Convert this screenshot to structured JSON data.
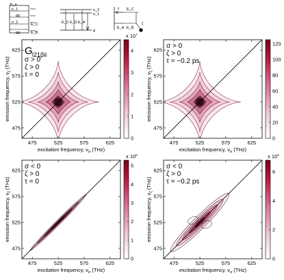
{
  "figure": {
    "diagram_labels": [
      "E_e",
      "E_b",
      "e_1",
      "e_2",
      "gg",
      "E_E",
      "E_D",
      "E_A",
      "E_B",
      "E_C",
      "g",
      "σ",
      "ζ",
      "τ",
      "e_1",
      "e_2"
    ],
    "panel_label": "G",
    "panel_label_sub": "l21βii"
  },
  "chart_data": [
    {
      "id": "top-left",
      "type": "heatmap",
      "pattern": "star",
      "params": [
        "σ > 0",
        "ζ > 0",
        "τ = 0"
      ],
      "xlabel": "excitation frequency, ν",
      "xlabel_sub": "σ",
      "xlabel_tail": " (THz)",
      "ylabel": "emission frequency, ν",
      "ylabel_sub": "ζ",
      "ylabel_tail": " (THz)",
      "xticks": [
        "475",
        "525",
        "575",
        "625"
      ],
      "yticks": [
        "475",
        "525",
        "575",
        "625"
      ],
      "xlim": [
        455,
        645
      ],
      "ylim": [
        455,
        645
      ],
      "peak": [
        525,
        525
      ],
      "colorbar": {
        "ticks": [
          "0",
          "1",
          "2",
          "3",
          "4"
        ],
        "multiplier": "x 10",
        "exponent": "7",
        "max": 4.5
      }
    },
    {
      "id": "top-right",
      "type": "heatmap",
      "pattern": "star",
      "params": [
        "σ > 0",
        "ζ > 0",
        "τ = −0.2 ps"
      ],
      "xlabel": "excitation frequency, ν",
      "xlabel_sub": "σ",
      "xlabel_tail": " (THz)",
      "ylabel": "emission frequency, ν",
      "ylabel_sub": "ζ",
      "ylabel_tail": " (THz)",
      "xticks": [
        "475",
        "525",
        "575",
        "625"
      ],
      "yticks": [
        "475",
        "525",
        "575",
        "625"
      ],
      "xlim": [
        455,
        645
      ],
      "ylim": [
        455,
        645
      ],
      "peak": [
        525,
        525
      ],
      "colorbar": {
        "ticks": [
          "0",
          "20",
          "40",
          "60",
          "80",
          "100",
          "120"
        ],
        "multiplier": "",
        "exponent": "",
        "max": 125
      }
    },
    {
      "id": "bottom-left",
      "type": "heatmap",
      "pattern": "diagonal",
      "params": [
        "σ < 0",
        "ζ > 0",
        "τ = 0"
      ],
      "xlabel": "excitation frequency, ν",
      "xlabel_sub": "σ",
      "xlabel_tail": " (THz)",
      "ylabel": "emission frequency, ν",
      "ylabel_sub": "ζ",
      "ylabel_tail": " (THz)",
      "xticks": [
        "475",
        "525",
        "575",
        "625"
      ],
      "yticks": [
        "475",
        "525",
        "575",
        "625"
      ],
      "xlim": [
        455,
        645
      ],
      "ylim": [
        455,
        645
      ],
      "peak": [
        525,
        525
      ],
      "colorbar": {
        "ticks": [
          "0",
          "1",
          "2",
          "3",
          "4",
          "5"
        ],
        "multiplier": "x 10",
        "exponent": "6",
        "max": 5.3
      }
    },
    {
      "id": "bottom-right",
      "type": "heatmap",
      "pattern": "diagonal-wide",
      "params": [
        "σ < 0",
        "ζ > 0",
        "τ = −0.2 ps"
      ],
      "xlabel": "excitation frequency, ν",
      "xlabel_sub": "σ",
      "xlabel_tail": " (THz)",
      "ylabel": "emission frequency, ν",
      "ylabel_sub": "ζ",
      "ylabel_tail": " (THz)",
      "xticks": [
        "475",
        "525",
        "575",
        "625"
      ],
      "yticks": [
        "475",
        "525",
        "575",
        "625"
      ],
      "xlim": [
        455,
        645
      ],
      "ylim": [
        455,
        645
      ],
      "peak": [
        525,
        525
      ],
      "colorbar": {
        "ticks": [
          "0",
          "2",
          "4",
          "6"
        ],
        "multiplier": "x 10",
        "exponent": "5",
        "max": 6.8
      }
    }
  ]
}
